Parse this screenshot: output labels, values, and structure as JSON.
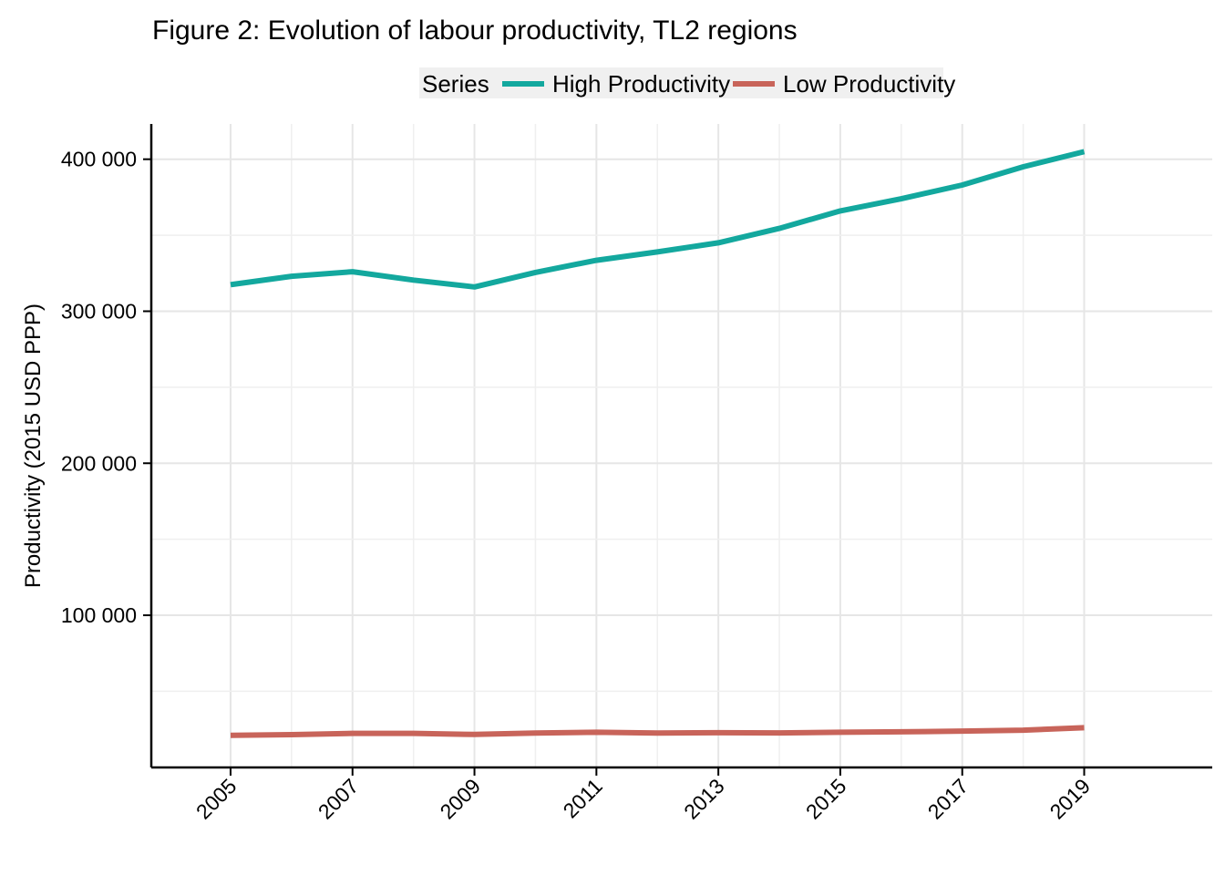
{
  "chart_data": {
    "type": "line",
    "title": "Figure 2: Evolution of labour productivity, TL2 regions",
    "xlabel": "",
    "ylabel": "Productivity (2015 USD PPP)",
    "x": [
      2005,
      2006,
      2007,
      2008,
      2009,
      2010,
      2011,
      2012,
      2013,
      2014,
      2015,
      2016,
      2017,
      2018,
      2019
    ],
    "x_ticks": [
      2005,
      2007,
      2009,
      2011,
      2013,
      2015,
      2017,
      2019
    ],
    "x_tick_labels": [
      "2005",
      "2007",
      "2009",
      "2011",
      "2013",
      "2015",
      "2017",
      "2019"
    ],
    "xlim": [
      2003.7,
      2021.1
    ],
    "y_ticks": [
      100000,
      200000,
      300000,
      400000
    ],
    "y_tick_labels": [
      "100 000",
      "200 000",
      "300 000",
      "400 000"
    ],
    "ylim": [
      -115,
      423200
    ],
    "grid": true,
    "legend": {
      "title": "Series",
      "placement": "top-center"
    },
    "series": [
      {
        "name": "High Productivity",
        "color": "#13a89e",
        "values": [
          317500,
          323000,
          326000,
          320500,
          316000,
          325500,
          333500,
          339000,
          345000,
          354500,
          366000,
          374000,
          383000,
          395000,
          405000
        ]
      },
      {
        "name": "Low Productivity",
        "color": "#c8645a",
        "values": [
          21000,
          21500,
          22300,
          22300,
          21600,
          22500,
          23000,
          22500,
          22700,
          22600,
          23000,
          23300,
          23800,
          24400,
          26000
        ]
      }
    ]
  }
}
